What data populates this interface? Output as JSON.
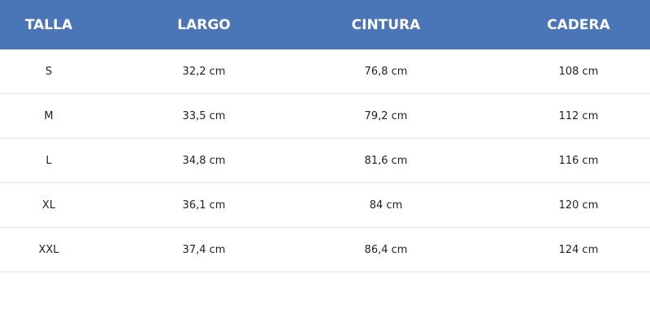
{
  "header_color": "#4a76b8",
  "columns": [
    "TALLA",
    "LARGO",
    "CINTURA",
    "CADERA"
  ],
  "rows": [
    [
      "S",
      "32,2 cm",
      "76,8 cm",
      "108 cm"
    ],
    [
      "M",
      "33,5 cm",
      "79,2 cm",
      "112 cm"
    ],
    [
      "L",
      "34,8 cm",
      "81,6 cm",
      "116 cm"
    ],
    [
      "XL",
      "36,1 cm",
      "84 cm",
      "120 cm"
    ],
    [
      "XXL",
      "37,4 cm",
      "86,4 cm",
      "124 cm"
    ]
  ]
}
